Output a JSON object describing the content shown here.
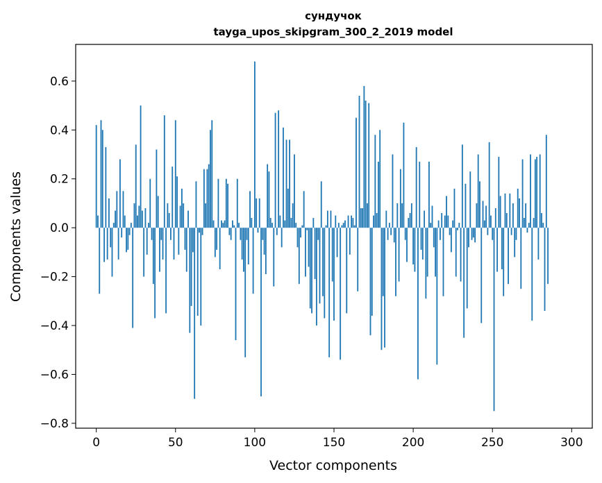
{
  "chart_data": {
    "type": "bar",
    "title_line1": "сундучок",
    "title_line2": "tayga_upos_skipgram_300_2_2019 model",
    "xlabel": "Vector components",
    "ylabel": "Components values",
    "xlim": [
      -13,
      313
    ],
    "ylim": [
      -0.82,
      0.75
    ],
    "xticks": [
      0,
      50,
      100,
      150,
      200,
      250,
      300
    ],
    "xtick_labels": [
      "0",
      "50",
      "100",
      "150",
      "200",
      "250",
      "300"
    ],
    "yticks": [
      -0.8,
      -0.6,
      -0.4,
      -0.2,
      0.0,
      0.2,
      0.4,
      0.6
    ],
    "ytick_labels": [
      "−0.8",
      "−0.6",
      "−0.4",
      "−0.2",
      "0.0",
      "0.2",
      "0.4",
      "0.6"
    ],
    "bar_color": "#1f77b4",
    "values": [
      0.42,
      0.05,
      -0.27,
      0.44,
      0.4,
      -0.14,
      0.33,
      -0.13,
      0.12,
      -0.08,
      -0.2,
      0.02,
      0.07,
      0.15,
      -0.13,
      0.28,
      -0.04,
      0.15,
      0.05,
      -0.1,
      -0.09,
      -0.03,
      0.02,
      -0.41,
      0.1,
      0.34,
      0.05,
      0.09,
      0.5,
      0.07,
      -0.2,
      0.08,
      -0.11,
      0.02,
      0.2,
      -0.05,
      -0.23,
      -0.37,
      0.32,
      0.13,
      -0.18,
      -0.05,
      -0.13,
      0.46,
      -0.35,
      0.1,
      0.06,
      -0.05,
      0.25,
      -0.13,
      0.44,
      0.21,
      -0.11,
      0.09,
      0.16,
      0.1,
      -0.09,
      -0.18,
      0.07,
      -0.43,
      -0.32,
      -0.1,
      -0.7,
      0.19,
      -0.36,
      -0.02,
      -0.4,
      -0.03,
      0.24,
      0.1,
      0.24,
      0.26,
      0.4,
      0.44,
      0.03,
      -0.12,
      -0.09,
      0.2,
      -0.17,
      0.03,
      0.02,
      0.03,
      0.2,
      0.18,
      -0.03,
      -0.05,
      0.03,
      0.01,
      -0.46,
      0.2,
      0.02,
      -0.05,
      -0.13,
      -0.18,
      -0.53,
      -0.05,
      -0.15,
      0.15,
      0.04,
      -0.27,
      0.68,
      0.12,
      -0.02,
      0.12,
      -0.69,
      -0.05,
      -0.11,
      -0.19,
      0.26,
      0.23,
      0.04,
      0.02,
      -0.24,
      0.47,
      -0.03,
      0.48,
      0.05,
      -0.08,
      0.41,
      0.03,
      0.36,
      0.16,
      0.36,
      0.04,
      0.1,
      0.3,
      0.02,
      -0.08,
      -0.23,
      -0.04,
      0.01,
      0.15,
      -0.2,
      -0.01,
      -0.16,
      -0.33,
      -0.35,
      0.04,
      -0.21,
      -0.4,
      -0.05,
      -0.31,
      0.19,
      -0.28,
      -0.37,
      0.01,
      0.07,
      -0.53,
      0.07,
      -0.22,
      -0.38,
      0.05,
      -0.12,
      0.02,
      -0.54,
      0.01,
      0.02,
      0.03,
      -0.35,
      0.05,
      -0.11,
      0.05,
      0.04,
      0.01,
      0.45,
      -0.26,
      0.54,
      0.08,
      0.08,
      0.58,
      0.52,
      0.1,
      0.51,
      -0.44,
      -0.36,
      0.05,
      0.38,
      0.06,
      0.27,
      0.4,
      -0.5,
      -0.28,
      -0.49,
      0.07,
      -0.05,
      0.02,
      -0.03,
      0.3,
      -0.06,
      -0.28,
      0.1,
      -0.22,
      0.24,
      0.1,
      0.43,
      -0.05,
      -0.14,
      0.04,
      0.06,
      0.1,
      -0.15,
      -0.18,
      0.33,
      -0.62,
      0.27,
      -0.09,
      -0.13,
      0.07,
      -0.29,
      -0.2,
      0.27,
      0.02,
      0.09,
      -0.08,
      -0.2,
      -0.56,
      0.03,
      -0.05,
      0.06,
      -0.28,
      0.05,
      0.13,
      0.05,
      -0.03,
      -0.1,
      0.03,
      0.16,
      -0.2,
      -0.01,
      0.02,
      -0.22,
      0.34,
      -0.45,
      0.18,
      -0.33,
      -0.08,
      0.23,
      -0.05,
      -0.04,
      -0.06,
      0.1,
      0.3,
      0.19,
      -0.39,
      0.11,
      0.03,
      0.09,
      -0.03,
      0.35,
      0.05,
      -0.05,
      -0.75,
      0.08,
      -0.18,
      0.29,
      0.13,
      -0.17,
      -0.28,
      0.14,
      0.06,
      -0.23,
      0.14,
      -0.03,
      0.1,
      -0.12,
      -0.05,
      0.16,
      0.12,
      -0.25,
      0.28,
      0.04,
      0.1,
      -0.02,
      0.02,
      0.3,
      -0.38,
      0.04,
      0.28,
      0.29,
      -0.13,
      0.3,
      0.06,
      0.02,
      -0.34,
      0.38,
      -0.23
    ]
  }
}
